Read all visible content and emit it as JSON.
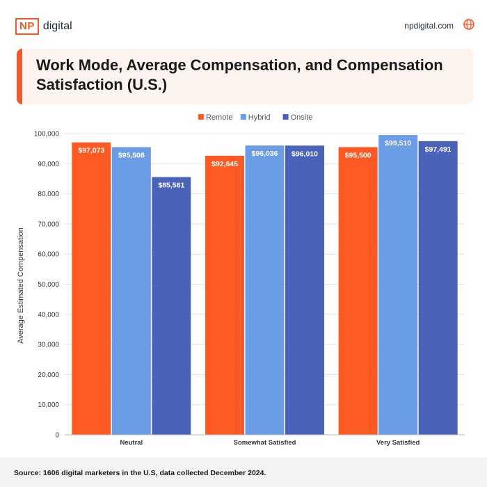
{
  "brand": {
    "logo_mark": "NP",
    "logo_word": "digital",
    "website": "npdigital.com",
    "globe_icon": "globe-icon"
  },
  "title": "Work Mode, Average Compensation, and Compensation Satisfaction (U.S.)",
  "source": "Source: 1606 digital marketers in the U.S, data collected December 2024.",
  "colors": {
    "accent": "#f05a28",
    "remote": "#ff5a23",
    "hybrid": "#6a9de6",
    "onsite": "#4863b8"
  },
  "chart_data": {
    "type": "bar",
    "categories": [
      "Neutral",
      "Somewhat Satisfied",
      "Very Satisfied"
    ],
    "series": [
      {
        "name": "Remote",
        "values": [
          97073,
          92645,
          95500
        ],
        "labels": [
          "$97,073",
          "$92,645",
          "$95,500"
        ]
      },
      {
        "name": "Hybrid",
        "values": [
          95508,
          96036,
          99510
        ],
        "labels": [
          "$95,508",
          "$96,036",
          "$99,510"
        ]
      },
      {
        "name": "Onsite",
        "values": [
          85561,
          96010,
          97491
        ],
        "labels": [
          "$85,561",
          "$96,010",
          "$97,491"
        ]
      }
    ],
    "ylabel": "Average Estimated Compensation",
    "xlabel": "",
    "ylim": [
      0,
      100000
    ],
    "yticks": [
      "0",
      "10,000",
      "20,000",
      "30,000",
      "40,000",
      "50,000",
      "60,000",
      "70,000",
      "80,000",
      "90,000",
      "100,000"
    ],
    "legend": "top-center",
    "grid": true
  }
}
